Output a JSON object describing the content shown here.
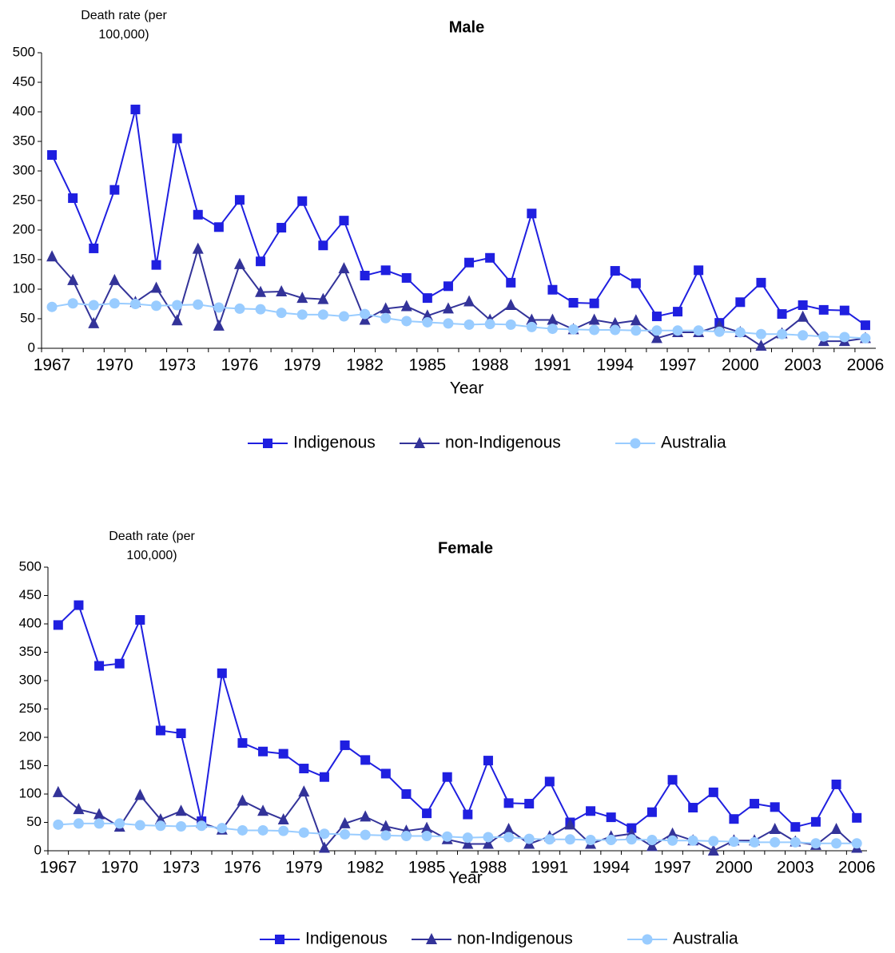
{
  "chart_data": [
    {
      "type": "line",
      "title": "Male",
      "y_label": "Death rate (per 100,000)",
      "x_label": "Year",
      "x": [
        1967,
        1968,
        1969,
        1970,
        1971,
        1972,
        1973,
        1974,
        1975,
        1976,
        1977,
        1978,
        1979,
        1980,
        1981,
        1982,
        1983,
        1984,
        1985,
        1986,
        1987,
        1988,
        1989,
        1990,
        1991,
        1992,
        1993,
        1994,
        1995,
        1996,
        1997,
        1998,
        1999,
        2000,
        2001,
        2002,
        2003,
        2004,
        2005,
        2006
      ],
      "xlim": [
        1966.5,
        2006.5
      ],
      "xticks": [
        1967,
        1970,
        1973,
        1976,
        1979,
        1982,
        1985,
        1988,
        1991,
        1994,
        1997,
        2000,
        2003,
        2006
      ],
      "ylim": [
        0,
        500
      ],
      "yticks": [
        0,
        50,
        100,
        150,
        200,
        250,
        300,
        350,
        400,
        450,
        500
      ],
      "legend": "bottom",
      "series": [
        {
          "name": "Indigenous",
          "color": "#1f1fe0",
          "marker": "square",
          "values": [
            327,
            254,
            169,
            268,
            404,
            141,
            355,
            226,
            205,
            251,
            147,
            204,
            249,
            174,
            216,
            123,
            132,
            119,
            85,
            105,
            145,
            153,
            111,
            228,
            99,
            77,
            76,
            131,
            110,
            54,
            62,
            132,
            43,
            78,
            111,
            58,
            73,
            65,
            64,
            39
          ]
        },
        {
          "name": "non-Indigenous",
          "color": "#333399",
          "marker": "triangle",
          "values": [
            155,
            115,
            42,
            115,
            78,
            102,
            47,
            168,
            38,
            142,
            95,
            96,
            85,
            83,
            135,
            48,
            67,
            71,
            55,
            67,
            79,
            48,
            73,
            48,
            48,
            32,
            48,
            42,
            47,
            17,
            27,
            27,
            38,
            27,
            4,
            25,
            53,
            12,
            12,
            17
          ]
        },
        {
          "name": "Australia",
          "color": "#99ccff",
          "marker": "circle",
          "values": [
            70,
            76,
            73,
            76,
            75,
            72,
            73,
            74,
            69,
            67,
            66,
            60,
            57,
            57,
            54,
            58,
            51,
            46,
            44,
            42,
            40,
            41,
            40,
            36,
            33,
            32,
            31,
            31,
            30,
            30,
            30,
            30,
            28,
            27,
            24,
            24,
            22,
            20,
            19,
            17
          ]
        }
      ]
    },
    {
      "type": "line",
      "title": "Female",
      "y_label": "Death rate (per 100,000)",
      "x_label": "Year",
      "x": [
        1967,
        1968,
        1969,
        1970,
        1971,
        1972,
        1973,
        1974,
        1975,
        1976,
        1977,
        1978,
        1979,
        1980,
        1981,
        1982,
        1983,
        1984,
        1985,
        1986,
        1987,
        1988,
        1989,
        1990,
        1991,
        1992,
        1993,
        1994,
        1995,
        1996,
        1997,
        1998,
        1999,
        2000,
        2001,
        2002,
        2003,
        2004,
        2005,
        2006
      ],
      "xlim": [
        1966.5,
        2006.5
      ],
      "xticks": [
        1967,
        1970,
        1973,
        1976,
        1979,
        1982,
        1985,
        1988,
        1991,
        1994,
        1997,
        2000,
        2003,
        2006
      ],
      "ylim": [
        0,
        500
      ],
      "yticks": [
        0,
        50,
        100,
        150,
        200,
        250,
        300,
        350,
        400,
        450,
        500
      ],
      "legend": "bottom",
      "series": [
        {
          "name": "Indigenous",
          "color": "#1f1fe0",
          "marker": "square",
          "values": [
            398,
            433,
            326,
            330,
            407,
            212,
            207,
            52,
            313,
            190,
            175,
            171,
            145,
            130,
            186,
            160,
            136,
            100,
            66,
            130,
            64,
            159,
            84,
            83,
            122,
            50,
            70,
            59,
            40,
            68,
            125,
            76,
            103,
            56,
            83,
            77,
            42,
            51,
            117,
            58
          ]
        },
        {
          "name": "non-Indigenous",
          "color": "#333399",
          "marker": "triangle",
          "values": [
            103,
            73,
            64,
            42,
            98,
            55,
            70,
            49,
            37,
            88,
            70,
            55,
            104,
            5,
            48,
            60,
            43,
            35,
            40,
            20,
            12,
            12,
            38,
            12,
            25,
            46,
            12,
            25,
            30,
            8,
            30,
            18,
            0,
            18,
            18,
            38,
            16,
            10,
            38,
            5
          ]
        },
        {
          "name": "Australia",
          "color": "#99ccff",
          "marker": "circle",
          "values": [
            46,
            48,
            48,
            48,
            45,
            44,
            43,
            44,
            40,
            36,
            36,
            35,
            32,
            30,
            29,
            28,
            27,
            26,
            26,
            25,
            23,
            24,
            24,
            21,
            20,
            20,
            19,
            19,
            20,
            19,
            18,
            18,
            17,
            16,
            15,
            15,
            15,
            13,
            13,
            13
          ]
        }
      ]
    }
  ]
}
